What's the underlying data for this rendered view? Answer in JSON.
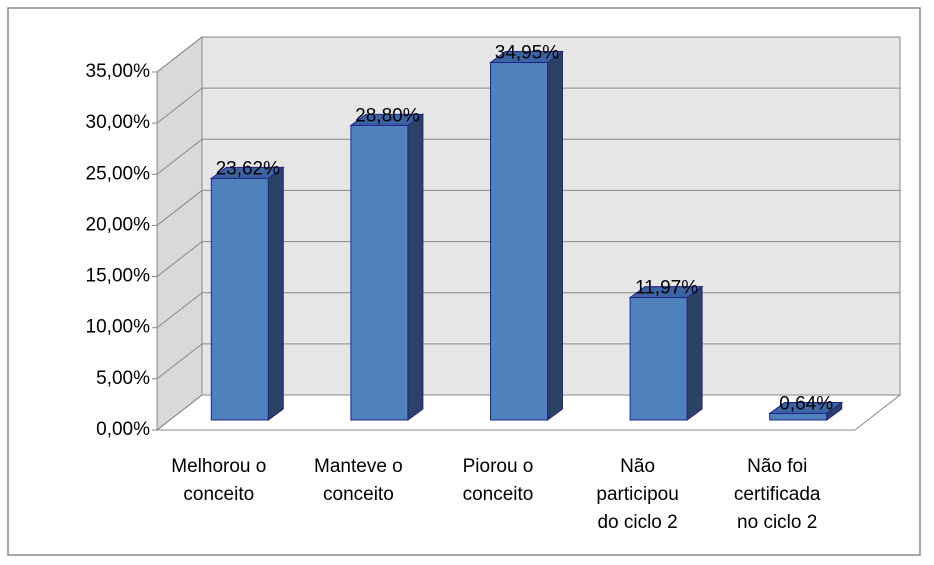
{
  "chart_data": {
    "type": "bar3d",
    "categories": [
      [
        "Melhorou o",
        "conceito"
      ],
      [
        "Manteve o",
        "conceito"
      ],
      [
        "Piorou o",
        "conceito"
      ],
      [
        "Não",
        "participou",
        "do ciclo 2"
      ],
      [
        "Não foi",
        "certificada",
        "no ciclo 2"
      ]
    ],
    "values": [
      23.62,
      28.8,
      34.95,
      11.97,
      0.64
    ],
    "value_labels": [
      "23,62%",
      "28,80%",
      "34,95%",
      "11,97%",
      "0,64%"
    ],
    "color": "#4f81bd",
    "ylim": [
      0,
      35
    ],
    "yticks": [
      {
        "value": 0,
        "label": "0,00%"
      },
      {
        "value": 5,
        "label": "5,00%"
      },
      {
        "value": 10,
        "label": "10,00%"
      },
      {
        "value": 15,
        "label": "15,00%"
      },
      {
        "value": 20,
        "label": "20,00%"
      },
      {
        "value": 25,
        "label": "25,00%"
      },
      {
        "value": 30,
        "label": "30,00%"
      },
      {
        "value": 35,
        "label": "35,00%"
      }
    ],
    "grid": true
  }
}
